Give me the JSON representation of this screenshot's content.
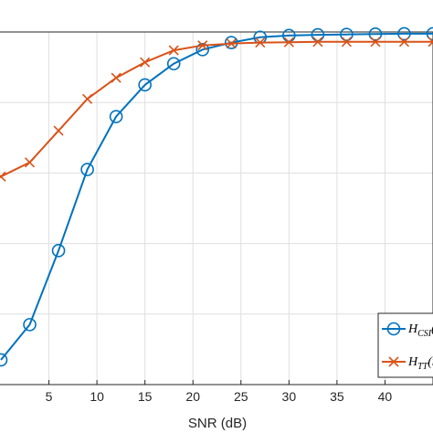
{
  "chart_data": {
    "type": "line",
    "xlabel": "SNR (dB)",
    "ylabel": "",
    "title": "",
    "xlim": [
      0,
      45
    ],
    "ylim": [
      0,
      1
    ],
    "x_ticks": [
      5,
      10,
      15,
      20,
      25,
      30,
      35,
      40
    ],
    "grid": true,
    "legend_placement": "bottom-right",
    "series": [
      {
        "name_main": "H",
        "name_sub": "CSI",
        "name_tail": "(",
        "color": "#0072BD",
        "marker": "circle",
        "x": [
          0,
          3,
          6,
          9,
          12,
          15,
          18,
          21,
          24,
          27,
          30,
          33,
          36,
          39,
          42,
          45
        ],
        "y": [
          0.07,
          0.17,
          0.38,
          0.61,
          0.76,
          0.85,
          0.91,
          0.95,
          0.97,
          0.985,
          0.99,
          0.992,
          0.993,
          0.994,
          0.995,
          0.995
        ]
      },
      {
        "name_main": "H",
        "name_sub": "TT",
        "name_tail": "(m",
        "color": "#D95319",
        "marker": "x",
        "x": [
          0,
          3,
          6,
          9,
          12,
          15,
          18,
          21,
          24,
          27,
          30,
          33,
          36,
          39,
          42,
          45
        ],
        "y": [
          0.59,
          0.63,
          0.72,
          0.81,
          0.87,
          0.914,
          0.948,
          0.962,
          0.967,
          0.97,
          0.971,
          0.972,
          0.972,
          0.972,
          0.972,
          0.972
        ]
      }
    ]
  }
}
